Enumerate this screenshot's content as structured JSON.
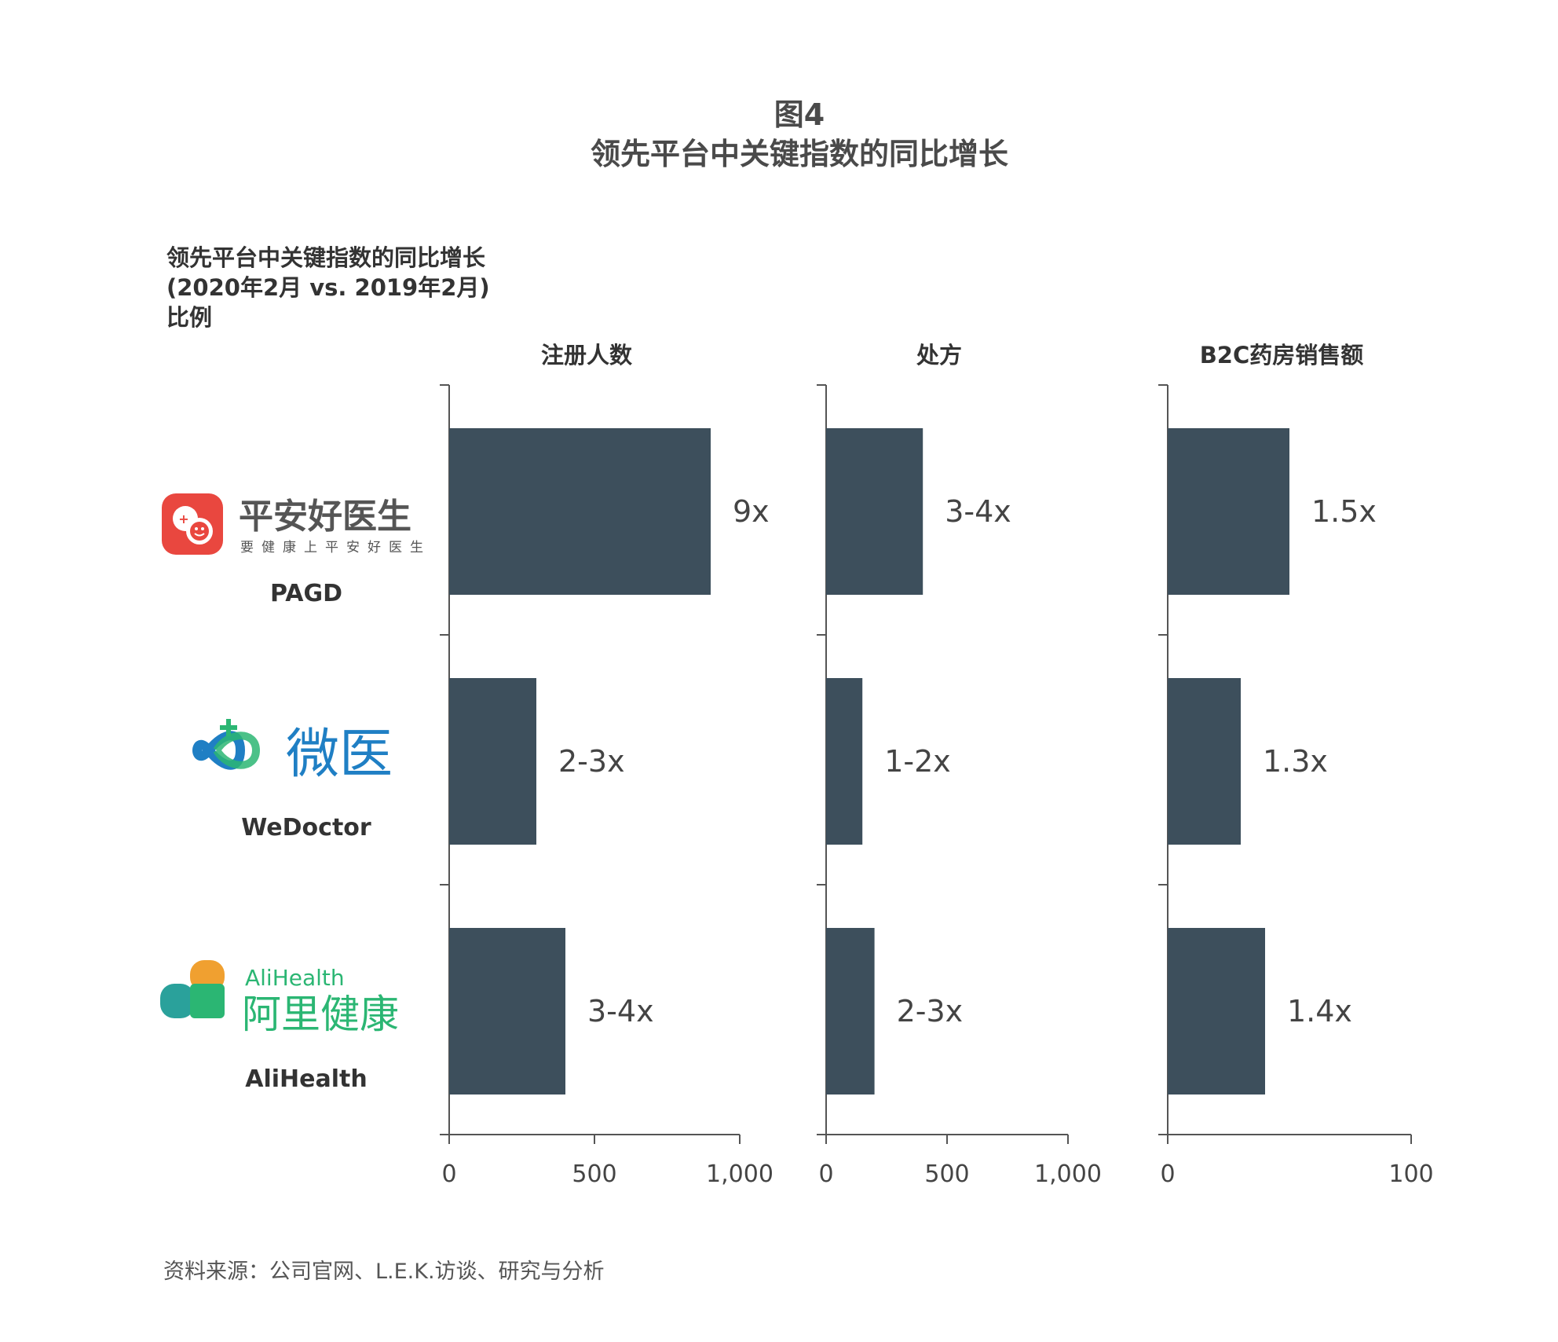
{
  "figure": {
    "label": "图4",
    "title": "领先平台中关键指数的同比增长"
  },
  "subtitle": {
    "line1": "领先平台中关键指数的同比增长",
    "line2": "(2020年2月 vs. 2019年2月)",
    "line3": "比例"
  },
  "companies": [
    {
      "name": "PAGD",
      "logo_text": "平安好医生",
      "logo_tagline": "要健康上平安好医生",
      "logo_color": "#e9473f"
    },
    {
      "name": "WeDoctor",
      "logo_text": "微医",
      "logo_color": "#1f7fc4",
      "logo_accent": "#2bb673"
    },
    {
      "name": "AliHealth",
      "logo_text_en": "AliHealth",
      "logo_text": "阿里健康",
      "logo_color": "#2bb673",
      "logo_accent": "#f0a030"
    }
  ],
  "chart_data": [
    {
      "type": "bar",
      "orientation": "horizontal",
      "title": "注册人数",
      "categories": [
        "PAGD",
        "WeDoctor",
        "AliHealth"
      ],
      "values": [
        900,
        300,
        400
      ],
      "data_labels": [
        "9x",
        "2-3x",
        "3-4x"
      ],
      "xlim": [
        0,
        1000
      ],
      "ticks": [
        0,
        500,
        1000
      ],
      "tick_labels": [
        "0",
        "500",
        "1,000"
      ]
    },
    {
      "type": "bar",
      "orientation": "horizontal",
      "title": "处方",
      "categories": [
        "PAGD",
        "WeDoctor",
        "AliHealth"
      ],
      "values": [
        400,
        150,
        200
      ],
      "data_labels": [
        "3-4x",
        "1-2x",
        "2-3x"
      ],
      "xlim": [
        0,
        1000
      ],
      "ticks": [
        0,
        500,
        1000
      ],
      "tick_labels": [
        "0",
        "500",
        "1,000"
      ]
    },
    {
      "type": "bar",
      "orientation": "horizontal",
      "title": "B2C药房销售额",
      "categories": [
        "PAGD",
        "WeDoctor",
        "AliHealth"
      ],
      "values": [
        50,
        30,
        40
      ],
      "data_labels": [
        "1.5x",
        "1.3x",
        "1.4x"
      ],
      "xlim": [
        0,
        100
      ],
      "ticks": [
        0,
        100
      ],
      "tick_labels": [
        "0",
        "100"
      ]
    }
  ],
  "colors": {
    "bar": "#3d4f5c",
    "axis": "#555555"
  },
  "source": "资料来源：公司官网、L.E.K.访谈、研究与分析"
}
